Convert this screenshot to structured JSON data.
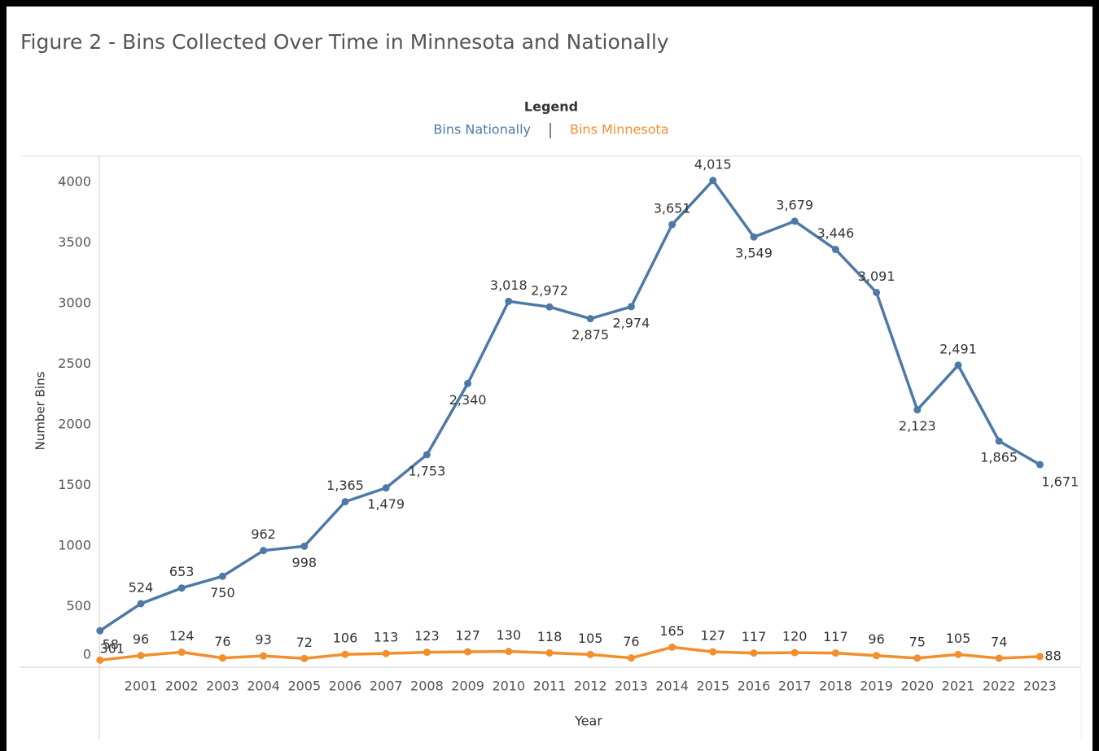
{
  "chart_data": {
    "type": "line",
    "title": "Figure 2 - Bins Collected Over Time in Minnesota and Nationally",
    "legend_title": "Legend",
    "x_label": "Year",
    "y_label": "Number Bins",
    "categories": [
      null,
      "2001",
      "2002",
      "2003",
      "2004",
      "2005",
      "2006",
      "2007",
      "2008",
      "2009",
      "2010",
      "2011",
      "2012",
      "2013",
      "2014",
      "2015",
      "2016",
      "2017",
      "2018",
      "2019",
      "2020",
      "2021",
      "2022",
      "2023"
    ],
    "series": [
      {
        "name": "Bins Nationally",
        "color": "#4e79a7",
        "values": [
          301,
          524,
          653,
          750,
          962,
          998,
          1365,
          1479,
          1753,
          2340,
          3018,
          2972,
          2875,
          2974,
          3651,
          4015,
          3549,
          3679,
          3446,
          3091,
          2123,
          2491,
          1865,
          1671
        ],
        "value_labels": [
          "301",
          "524",
          "653",
          "750",
          "962",
          "998",
          "1,365",
          "1,479",
          "1,753",
          "2,340",
          "3,018",
          "2,972",
          "2,875",
          "2,974",
          "3,651",
          "4,015",
          "3,549",
          "3,679",
          "3,446",
          "3,091",
          "2,123",
          "2,491",
          "1,865",
          "1,671"
        ]
      },
      {
        "name": "Bins Minnesota",
        "color": "#f28e2b",
        "values": [
          58,
          96,
          124,
          76,
          93,
          72,
          106,
          113,
          123,
          127,
          130,
          118,
          105,
          76,
          165,
          127,
          117,
          120,
          117,
          96,
          75,
          105,
          74,
          88
        ]
      }
    ],
    "ylim": [
      0,
      4215
    ],
    "yticks": [
      0,
      500,
      1000,
      1500,
      2000,
      2500,
      3000,
      3500,
      4000
    ],
    "grid": false
  }
}
